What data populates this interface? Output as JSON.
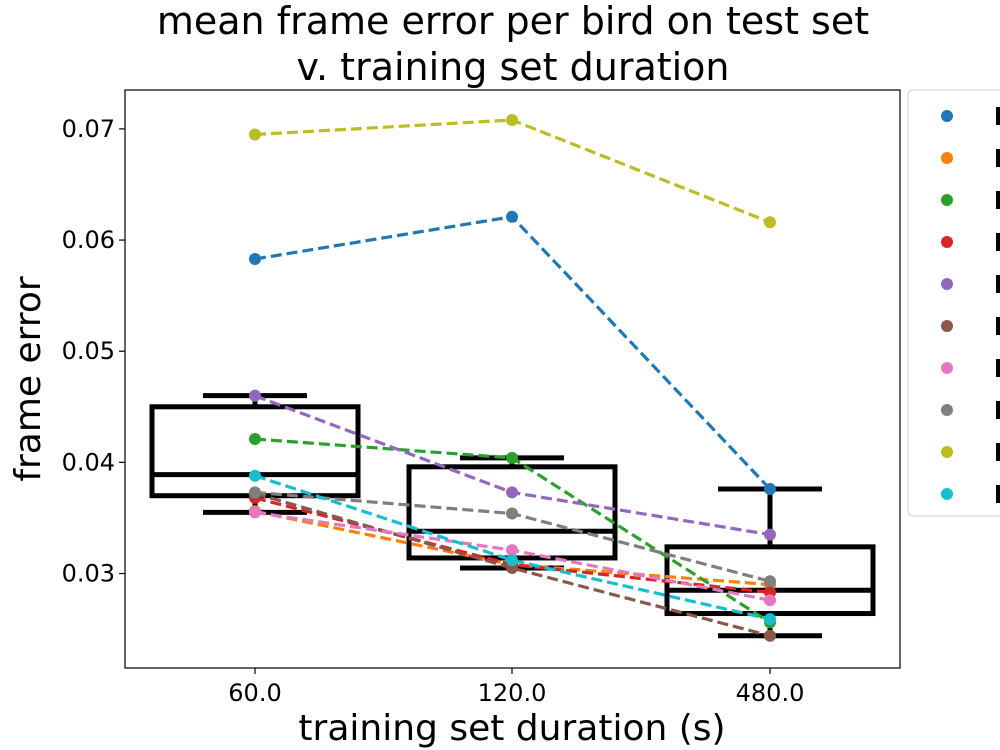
{
  "chart_data": {
    "type": "line",
    "title_lines": [
      "mean frame error per bird on test set",
      "v. training set duration"
    ],
    "xlabel": "training set duration (s)",
    "ylabel": "frame error",
    "categories": [
      "60.0",
      "120.0",
      "480.0"
    ],
    "ylim": [
      0.0215,
      0.0735
    ],
    "yticks": [
      0.03,
      0.04,
      0.05,
      0.06,
      0.07
    ],
    "ytick_labels": [
      "0.03",
      "0.04",
      "0.05",
      "0.06",
      "0.07"
    ],
    "grid": false,
    "legend_position": "outside-right",
    "series": [
      {
        "color": "#1f77b4",
        "values": [
          0.0583,
          0.0621,
          0.0376
        ]
      },
      {
        "color": "#ff7f0e",
        "values": [
          0.0356,
          0.0308,
          0.029
        ]
      },
      {
        "color": "#2ca02c",
        "values": [
          0.0421,
          0.0404,
          0.0256
        ]
      },
      {
        "color": "#d62728",
        "values": [
          0.0368,
          0.0308,
          0.0283
        ]
      },
      {
        "color": "#9467bd",
        "values": [
          0.046,
          0.0373,
          0.0335
        ]
      },
      {
        "color": "#8c564b",
        "values": [
          0.0372,
          0.0305,
          0.0244
        ]
      },
      {
        "color": "#e377c2",
        "values": [
          0.0355,
          0.0321,
          0.0276
        ]
      },
      {
        "color": "#7f7f7f",
        "values": [
          0.0373,
          0.0354,
          0.0293
        ]
      },
      {
        "color": "#bcbd22",
        "values": [
          0.0695,
          0.0708,
          0.0616
        ]
      },
      {
        "color": "#17becf",
        "values": [
          0.0388,
          0.0312,
          0.0259
        ]
      }
    ],
    "boxes": [
      {
        "category": "60.0",
        "whisker_low": 0.0355,
        "q1": 0.037,
        "median": 0.0389,
        "q3": 0.045,
        "whisker_high": 0.046
      },
      {
        "category": "120.0",
        "whisker_low": 0.0305,
        "q1": 0.0314,
        "median": 0.0338,
        "q3": 0.0396,
        "whisker_high": 0.0404
      },
      {
        "category": "480.0",
        "whisker_low": 0.0244,
        "q1": 0.0264,
        "median": 0.0285,
        "q3": 0.0324,
        "whisker_high": 0.0376
      }
    ]
  }
}
